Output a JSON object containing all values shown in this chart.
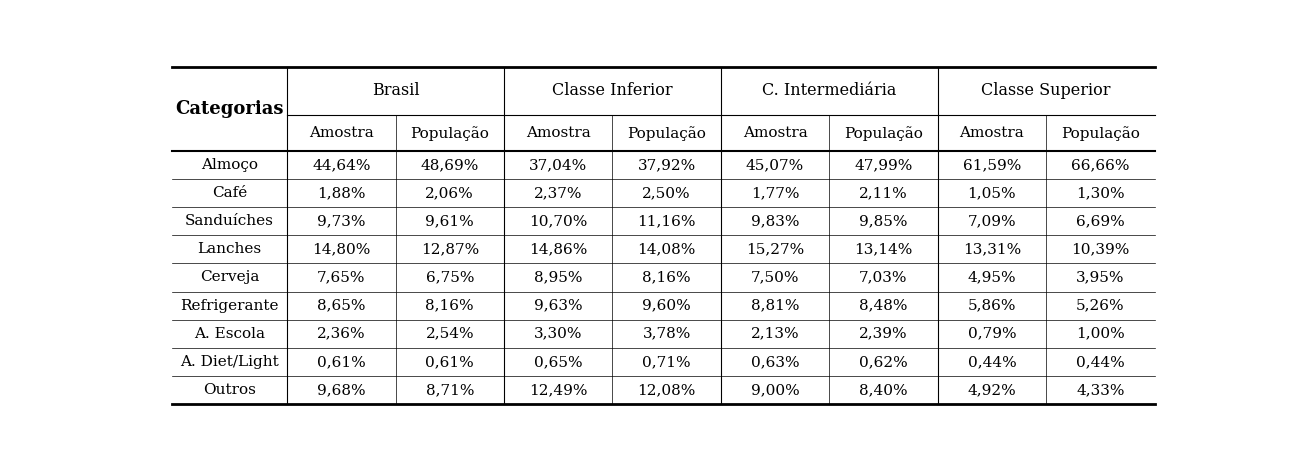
{
  "col_groups": [
    "Brasil",
    "Classe Inferior",
    "C. Intermediária",
    "Classe Superior"
  ],
  "col_subheaders": [
    "Amostra",
    "População"
  ],
  "row_labels": [
    "Almoço",
    "Café",
    "Sanduíches",
    "Lanches",
    "Cerveja",
    "Refrigerante",
    "A. Escola",
    "A. Diet/Light",
    "Outros"
  ],
  "data": [
    [
      "44,64%",
      "48,69%",
      "37,04%",
      "37,92%",
      "45,07%",
      "47,99%",
      "61,59%",
      "66,66%"
    ],
    [
      "1,88%",
      "2,06%",
      "2,37%",
      "2,50%",
      "1,77%",
      "2,11%",
      "1,05%",
      "1,30%"
    ],
    [
      "9,73%",
      "9,61%",
      "10,70%",
      "11,16%",
      "9,83%",
      "9,85%",
      "7,09%",
      "6,69%"
    ],
    [
      "14,80%",
      "12,87%",
      "14,86%",
      "14,08%",
      "15,27%",
      "13,14%",
      "13,31%",
      "10,39%"
    ],
    [
      "7,65%",
      "6,75%",
      "8,95%",
      "8,16%",
      "7,50%",
      "7,03%",
      "4,95%",
      "3,95%"
    ],
    [
      "8,65%",
      "8,16%",
      "9,63%",
      "9,60%",
      "8,81%",
      "8,48%",
      "5,86%",
      "5,26%"
    ],
    [
      "2,36%",
      "2,54%",
      "3,30%",
      "3,78%",
      "2,13%",
      "2,39%",
      "0,79%",
      "1,00%"
    ],
    [
      "0,61%",
      "0,61%",
      "0,65%",
      "0,71%",
      "0,63%",
      "0,62%",
      "0,44%",
      "0,44%"
    ],
    [
      "9,68%",
      "8,71%",
      "12,49%",
      "12,08%",
      "9,00%",
      "8,40%",
      "4,92%",
      "4,33%"
    ]
  ],
  "bg_color": "#ffffff",
  "text_color": "#000000",
  "font_size": 11,
  "header_font_size": 11.5,
  "cat_font_size": 13
}
